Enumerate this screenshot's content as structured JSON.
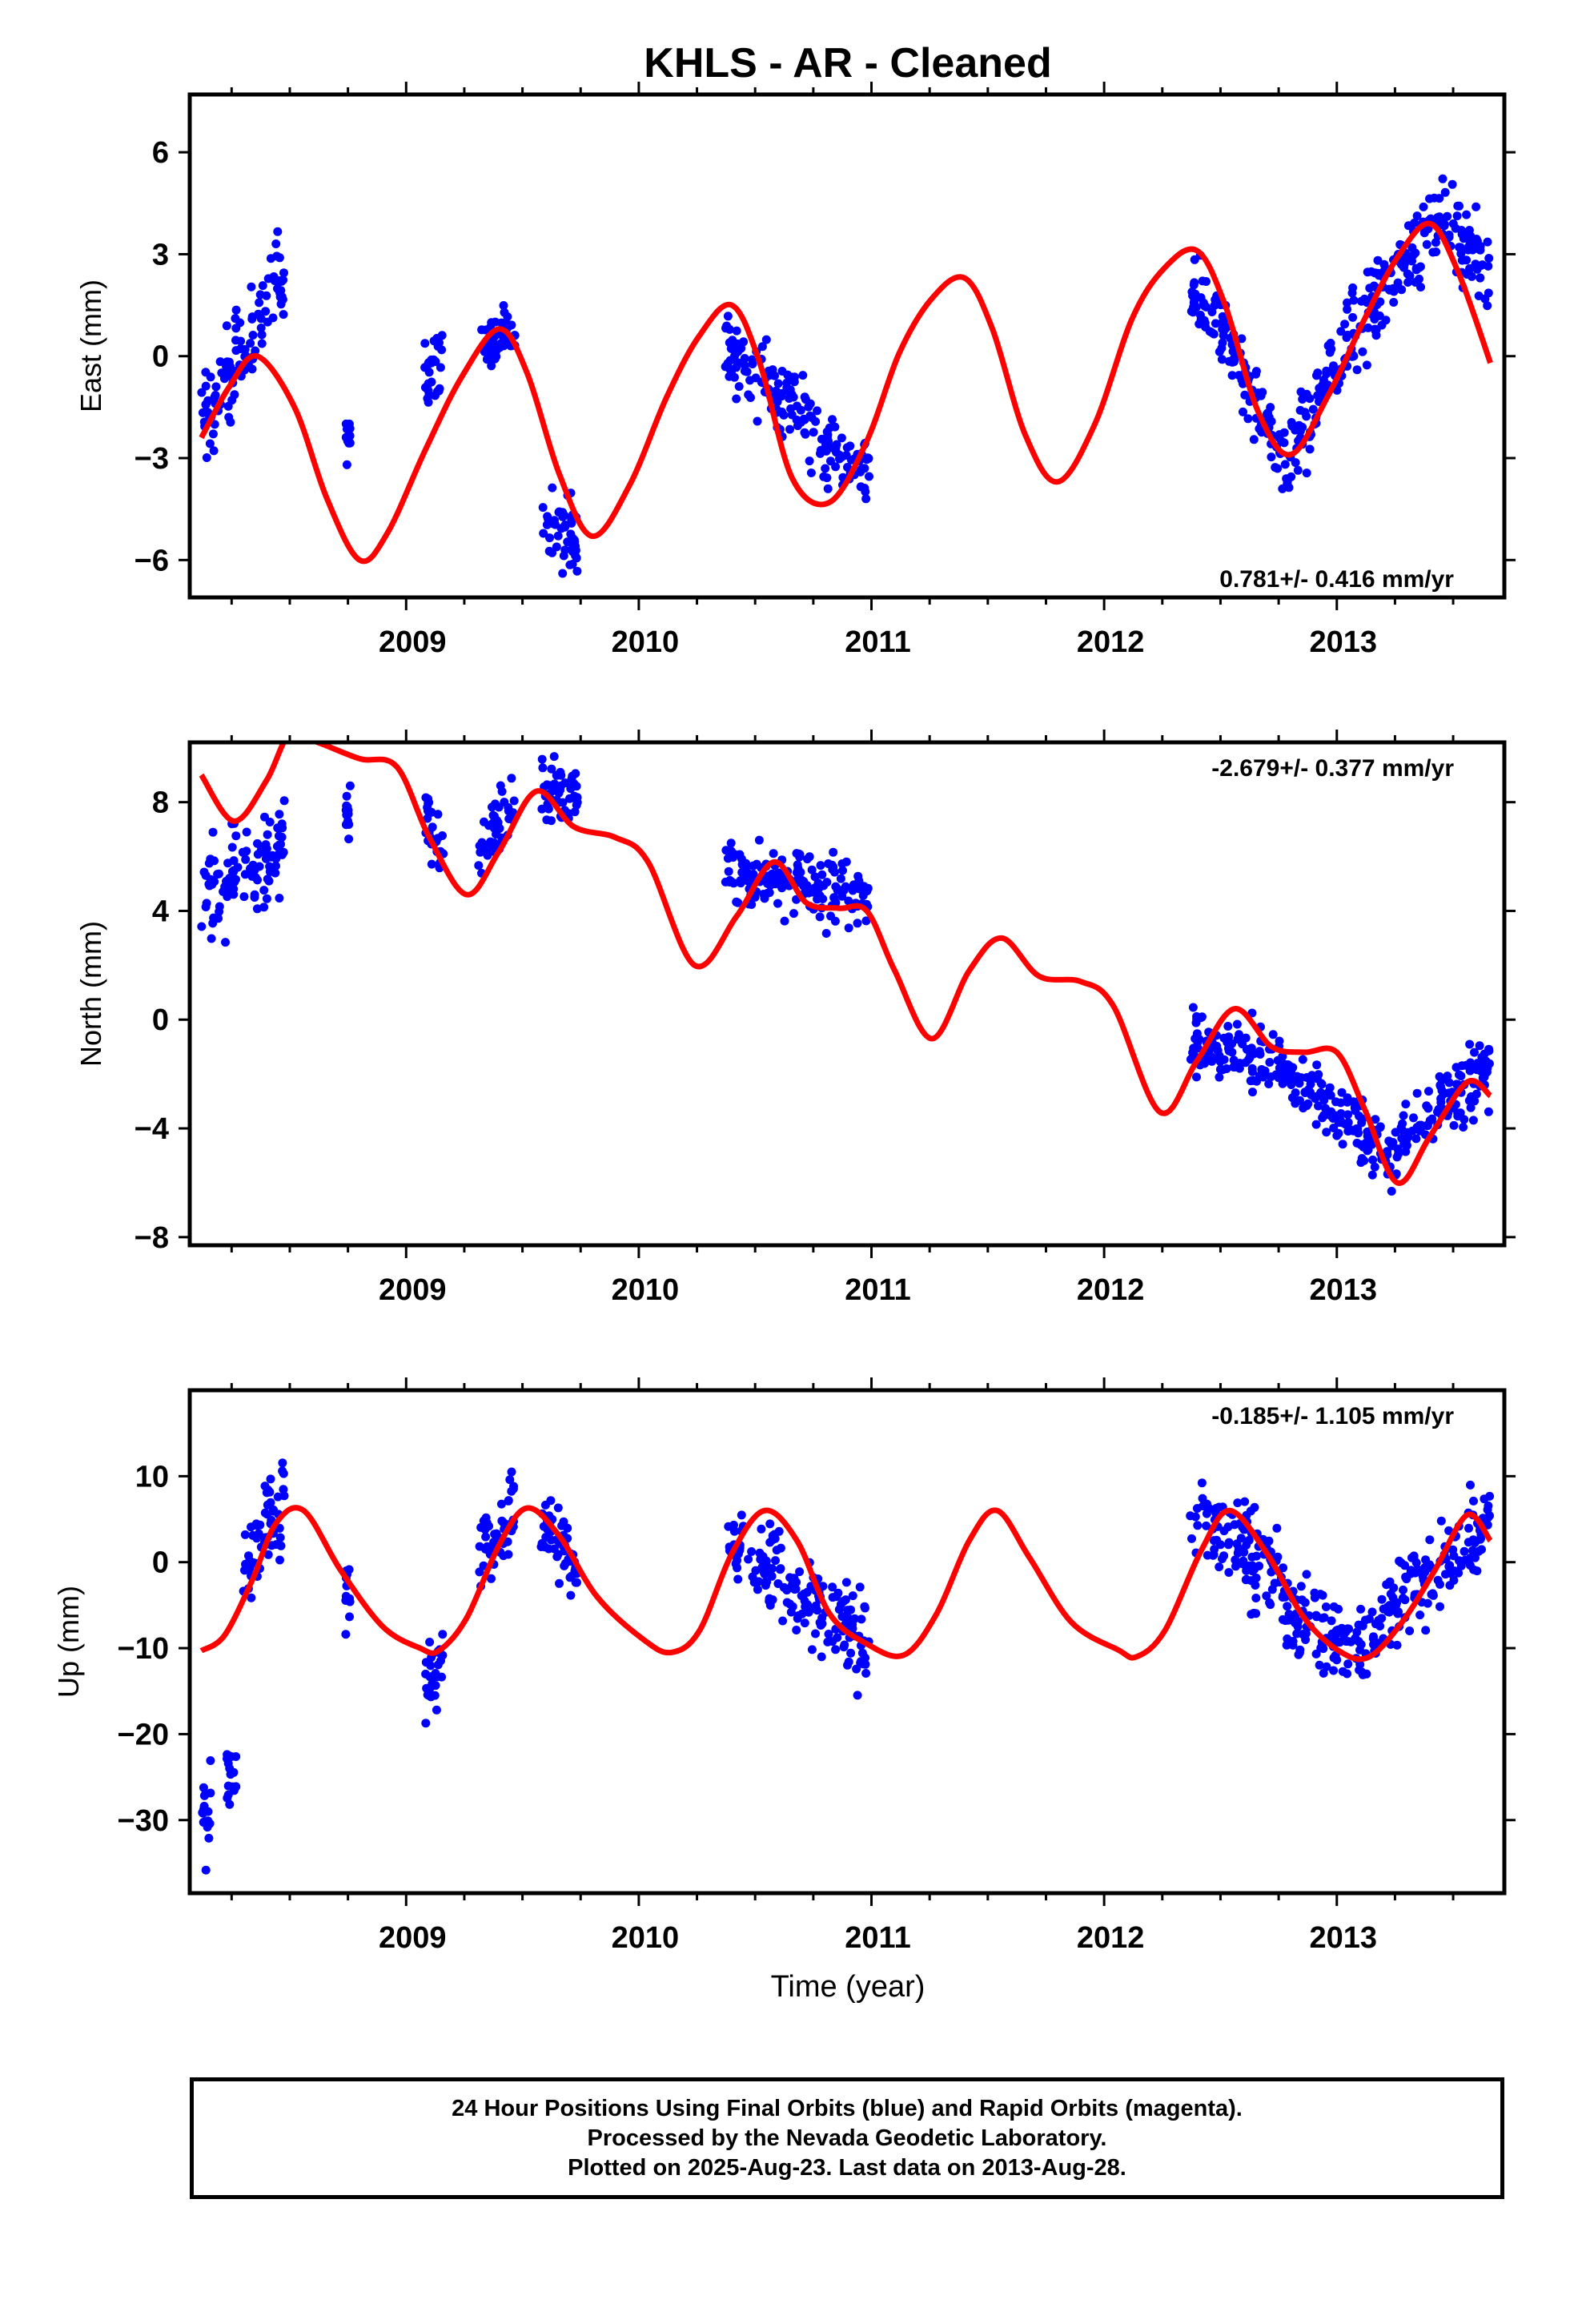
{
  "title": "KHLS  - AR - Cleaned",
  "xlabel": "Time (year)",
  "colors": {
    "data": "#0000ff",
    "model": "#ff0000",
    "axis": "#000000"
  },
  "caption": {
    "line1": "24 Hour Positions Using Final Orbits (blue) and Rapid Orbits (magenta).",
    "line2": "Processed by the Nevada Geodetic Laboratory.",
    "line3": "Plotted on 2025-Aug-23. Last data on 2013-Aug-28."
  },
  "chart_data": [
    {
      "type": "scatter",
      "ylabel": "East (mm)",
      "rate": "0.781+/- 0.416 mm/yr",
      "xlim": [
        2008.07,
        2013.72
      ],
      "ylim": [
        -7.1,
        7.7
      ],
      "xticks": [
        2009,
        2010,
        2011,
        2012,
        2013
      ],
      "yticks": [
        -6,
        -3,
        0,
        3,
        6
      ],
      "ytick_labels": [
        "−6",
        "−3",
        "0",
        "3",
        "6"
      ],
      "series": [
        {
          "role": "observations",
          "clusters": [
            {
              "x": [
                2008.12,
                2008.48
              ],
              "y0": -2.0,
              "y1": 2.6,
              "spread": 1.3
            },
            {
              "x": [
                2008.74,
                2008.76
              ],
              "y0": -2.5,
              "y1": -2.5,
              "spread": 0.9
            },
            {
              "x": [
                2009.08,
                2009.16
              ],
              "y0": -0.5,
              "y1": -0.5,
              "spread": 1.1
            },
            {
              "x": [
                2009.31,
                2009.47
              ],
              "y0": 0.3,
              "y1": 0.8,
              "spread": 0.8
            },
            {
              "x": [
                2009.58,
                2009.74
              ],
              "y0": -4.7,
              "y1": -5.6,
              "spread": 0.9
            },
            {
              "x": [
                2010.37,
                2010.99
              ],
              "y0": 0.2,
              "y1": -3.5,
              "spread": 1.0
            },
            {
              "x": [
                2012.37,
                2012.53
              ],
              "y0": 2.0,
              "y1": 0.5,
              "spread": 1.0
            },
            {
              "x": [
                2012.53,
                2012.8
              ],
              "y0": 0.5,
              "y1": -3.5,
              "spread": 1.0
            },
            {
              "x": [
                2012.8,
                2013.05
              ],
              "y0": -3.0,
              "y1": 0.5,
              "spread": 1.0
            },
            {
              "x": [
                2013.05,
                2013.45
              ],
              "y0": 0.5,
              "y1": 4.0,
              "spread": 1.1
            },
            {
              "x": [
                2013.45,
                2013.66
              ],
              "y0": 4.0,
              "y1": 2.5,
              "spread": 1.0
            }
          ]
        },
        {
          "role": "model",
          "x": [
            2008.12,
            2008.24,
            2008.36,
            2008.52,
            2008.66,
            2008.8,
            2008.92,
            2009.08,
            2009.24,
            2009.4,
            2009.52,
            2009.66,
            2009.8,
            2009.96,
            2010.12,
            2010.26,
            2010.4,
            2010.52,
            2010.66,
            2010.82,
            2010.98,
            2011.12,
            2011.26,
            2011.4,
            2011.52,
            2011.66,
            2011.8,
            2011.96,
            2012.12,
            2012.26,
            2012.4,
            2012.52,
            2012.66,
            2012.8,
            2012.96,
            2013.12,
            2013.26,
            2013.4,
            2013.52,
            2013.66
          ],
          "y": [
            -2.4,
            -0.9,
            0.0,
            -1.5,
            -4.2,
            -6.0,
            -5.2,
            -2.8,
            -0.6,
            0.8,
            -0.5,
            -3.5,
            -5.3,
            -3.8,
            -1.2,
            0.6,
            1.5,
            -0.2,
            -3.6,
            -4.3,
            -2.5,
            0.1,
            1.7,
            2.3,
            0.8,
            -2.3,
            -3.7,
            -2.0,
            1.1,
            2.6,
            3.1,
            1.5,
            -1.6,
            -2.9,
            -1.2,
            1.1,
            2.9,
            3.9,
            2.5,
            -0.2
          ]
        }
      ]
    },
    {
      "type": "scatter",
      "ylabel": "North (mm)",
      "rate": "-2.679+/- 0.377 mm/yr",
      "xlim": [
        2008.07,
        2013.72
      ],
      "ylim": [
        -8.3,
        10.2
      ],
      "xticks": [
        2009,
        2010,
        2011,
        2012,
        2013
      ],
      "yticks": [
        -8,
        -4,
        0,
        4,
        8
      ],
      "ytick_labels": [
        "−8",
        "−4",
        "0",
        "4",
        "8"
      ],
      "series": [
        {
          "role": "observations",
          "clusters": [
            {
              "x": [
                2008.12,
                2008.48
              ],
              "y0": 4.5,
              "y1": 6.5,
              "spread": 1.6
            },
            {
              "x": [
                2008.74,
                2008.76
              ],
              "y0": 7.7,
              "y1": 7.7,
              "spread": 0.7
            },
            {
              "x": [
                2009.08,
                2009.16
              ],
              "y0": 7.5,
              "y1": 6.0,
              "spread": 0.9
            },
            {
              "x": [
                2009.31,
                2009.47
              ],
              "y0": 6.0,
              "y1": 8.0,
              "spread": 1.0
            },
            {
              "x": [
                2009.58,
                2009.74
              ],
              "y0": 8.5,
              "y1": 8.3,
              "spread": 1.0
            },
            {
              "x": [
                2010.37,
                2010.99
              ],
              "y0": 5.4,
              "y1": 4.6,
              "spread": 1.0
            },
            {
              "x": [
                2012.37,
                2012.8
              ],
              "y0": -0.8,
              "y1": -1.8,
              "spread": 1.0
            },
            {
              "x": [
                2012.8,
                2013.25
              ],
              "y0": -2.0,
              "y1": -5.2,
              "spread": 1.0
            },
            {
              "x": [
                2013.25,
                2013.66
              ],
              "y0": -4.5,
              "y1": -1.8,
              "spread": 1.1
            }
          ]
        },
        {
          "role": "model",
          "x": [
            2008.12,
            2008.26,
            2008.4,
            2008.5,
            2008.62,
            2008.8,
            2008.96,
            2009.1,
            2009.26,
            2009.4,
            2009.56,
            2009.72,
            2009.9,
            2010.04,
            2010.24,
            2010.42,
            2010.58,
            2010.72,
            2010.86,
            2010.98,
            2011.1,
            2011.26,
            2011.42,
            2011.56,
            2011.72,
            2011.9,
            2012.04,
            2012.24,
            2012.4,
            2012.56,
            2012.72,
            2012.86,
            2013.0,
            2013.12,
            2013.26,
            2013.4,
            2013.56,
            2013.66
          ],
          "y": [
            9.0,
            7.3,
            8.8,
            10.5,
            10.2,
            9.6,
            9.3,
            6.7,
            4.6,
            6.2,
            8.4,
            7.1,
            6.7,
            5.8,
            2.0,
            3.8,
            5.8,
            4.3,
            4.1,
            4.0,
            1.8,
            -0.7,
            1.8,
            3.0,
            1.6,
            1.4,
            0.5,
            -3.4,
            -1.5,
            0.4,
            -1.0,
            -1.2,
            -1.2,
            -3.3,
            -6.0,
            -4.3,
            -2.3,
            -2.8
          ]
        }
      ]
    },
    {
      "type": "scatter",
      "ylabel": "Up (mm)",
      "rate": "-0.185+/- 1.105 mm/yr",
      "xlim": [
        2008.07,
        2013.72
      ],
      "ylim": [
        -38.5,
        20.0
      ],
      "xticks": [
        2009,
        2010,
        2011,
        2012,
        2013
      ],
      "yticks": [
        -30,
        -20,
        -10,
        0,
        10
      ],
      "ytick_labels": [
        "−30",
        "−20",
        "−10",
        "0",
        "10"
      ],
      "series": [
        {
          "role": "observations",
          "clusters": [
            {
              "x": [
                2008.12,
                2008.16
              ],
              "y0": -30.0,
              "y1": -30.0,
              "spread": 6.0
            },
            {
              "x": [
                2008.23,
                2008.27
              ],
              "y0": -25.0,
              "y1": -25.0,
              "spread": 4.0
            },
            {
              "x": [
                2008.3,
                2008.48
              ],
              "y0": 0.0,
              "y1": 8.0,
              "spread": 5.0
            },
            {
              "x": [
                2008.74,
                2008.76
              ],
              "y0": -4.0,
              "y1": -4.0,
              "spread": 3.0
            },
            {
              "x": [
                2009.08,
                2009.16
              ],
              "y0": -14.0,
              "y1": -11.0,
              "spread": 4.0
            },
            {
              "x": [
                2009.31,
                2009.47
              ],
              "y0": 0.0,
              "y1": 6.0,
              "spread": 4.0
            },
            {
              "x": [
                2009.58,
                2009.74
              ],
              "y0": 5.0,
              "y1": -1.0,
              "spread": 4.0
            },
            {
              "x": [
                2010.37,
                2010.99
              ],
              "y0": 4.0,
              "y1": -11.0,
              "spread": 4.5
            },
            {
              "x": [
                2012.37,
                2012.75
              ],
              "y0": 6.0,
              "y1": -1.0,
              "spread": 4.5
            },
            {
              "x": [
                2012.75,
                2013.1
              ],
              "y0": -4.0,
              "y1": -11.0,
              "spread": 4.0
            },
            {
              "x": [
                2013.1,
                2013.66
              ],
              "y0": -9.0,
              "y1": 5.0,
              "spread": 4.5
            }
          ]
        },
        {
          "role": "model",
          "x": [
            2008.12,
            2008.22,
            2008.34,
            2008.44,
            2008.56,
            2008.72,
            2008.9,
            2009.06,
            2009.14,
            2009.26,
            2009.4,
            2009.52,
            2009.66,
            2009.82,
            2010.02,
            2010.14,
            2010.26,
            2010.4,
            2010.54,
            2010.68,
            2010.82,
            2010.98,
            2011.14,
            2011.28,
            2011.42,
            2011.54,
            2011.68,
            2011.86,
            2012.06,
            2012.14,
            2012.26,
            2012.42,
            2012.54,
            2012.7,
            2012.86,
            2013.02,
            2013.14,
            2013.28,
            2013.42,
            2013.56,
            2013.66
          ],
          "y": [
            -10.3,
            -8.5,
            -2.0,
            4.5,
            6.0,
            -1.0,
            -7.5,
            -10.0,
            -10.3,
            -6.5,
            2.0,
            6.3,
            3.0,
            -4.0,
            -9.0,
            -10.5,
            -8.0,
            1.0,
            6.0,
            2.5,
            -6.0,
            -9.5,
            -10.8,
            -6.0,
            2.5,
            6.0,
            0.5,
            -7.0,
            -10.2,
            -11.0,
            -8.0,
            1.5,
            6.0,
            1.0,
            -6.5,
            -10.5,
            -11.0,
            -7.0,
            -1.0,
            5.5,
            2.5
          ]
        }
      ]
    }
  ]
}
